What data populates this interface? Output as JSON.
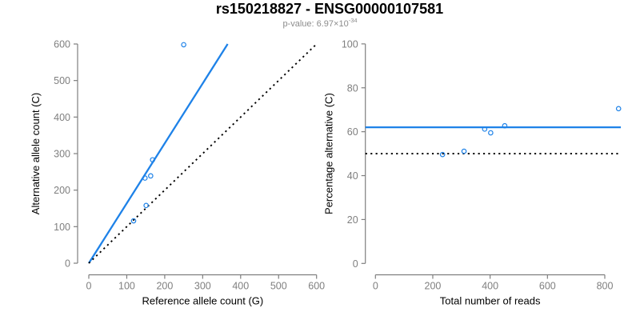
{
  "header": {
    "title": "rs150218827 - ENSG00000107581",
    "subtitle_base": "p-value: 6.97×10",
    "subtitle_exponent": "-34",
    "subtitle_full": "p-value: 6.97×10^-34"
  },
  "colors": {
    "accent_blue": "#1E82E8",
    "axis_gray": "#7F7F7F",
    "subtitle_gray": "#8C8C8C",
    "text_black": "#000000",
    "background": "#FFFFFF"
  },
  "chart_data": [
    {
      "type": "scatter",
      "name": "allele-counts-plot",
      "title": "",
      "xlabel": "Reference allele count (G)",
      "ylabel": "Alternative allele count (C)",
      "xlim": [
        0,
        600
      ],
      "ylim": [
        0,
        600
      ],
      "xticks": [
        0,
        100,
        200,
        300,
        400,
        500,
        600
      ],
      "yticks": [
        0,
        100,
        200,
        300,
        400,
        500,
        600
      ],
      "grid": false,
      "legend": "none",
      "points": [
        [
          118,
          116
        ],
        [
          151,
          158
        ],
        [
          148,
          233
        ],
        [
          163,
          239
        ],
        [
          168,
          283
        ],
        [
          250,
          598
        ]
      ],
      "lines": [
        {
          "name": "fitted-ratio-line",
          "style": "solid",
          "color": "accent_blue",
          "slope": 1.64,
          "intercept": 0
        },
        {
          "name": "identity-line",
          "style": "dotted",
          "color": "text_black",
          "slope": 1,
          "intercept": 0
        }
      ]
    },
    {
      "type": "scatter",
      "name": "percentage-alternative-plot",
      "title": "",
      "xlabel": "Total number of reads",
      "ylabel": "Percentage alternative (C)",
      "xlim": [
        0,
        850
      ],
      "ylim": [
        0,
        100
      ],
      "xticks": [
        0,
        200,
        400,
        600,
        800
      ],
      "yticks": [
        0,
        20,
        40,
        60,
        80,
        100
      ],
      "grid": false,
      "legend": "none",
      "points": [
        [
          234,
          49.6
        ],
        [
          309,
          51.1
        ],
        [
          381,
          61.2
        ],
        [
          402,
          59.5
        ],
        [
          451,
          62.7
        ],
        [
          848,
          70.5
        ]
      ],
      "lines": [
        {
          "name": "mean-percentage-line",
          "style": "solid",
          "color": "accent_blue",
          "hline": 62
        },
        {
          "name": "expected-50-percent-line",
          "style": "dotted",
          "color": "text_black",
          "hline": 50
        }
      ]
    }
  ]
}
